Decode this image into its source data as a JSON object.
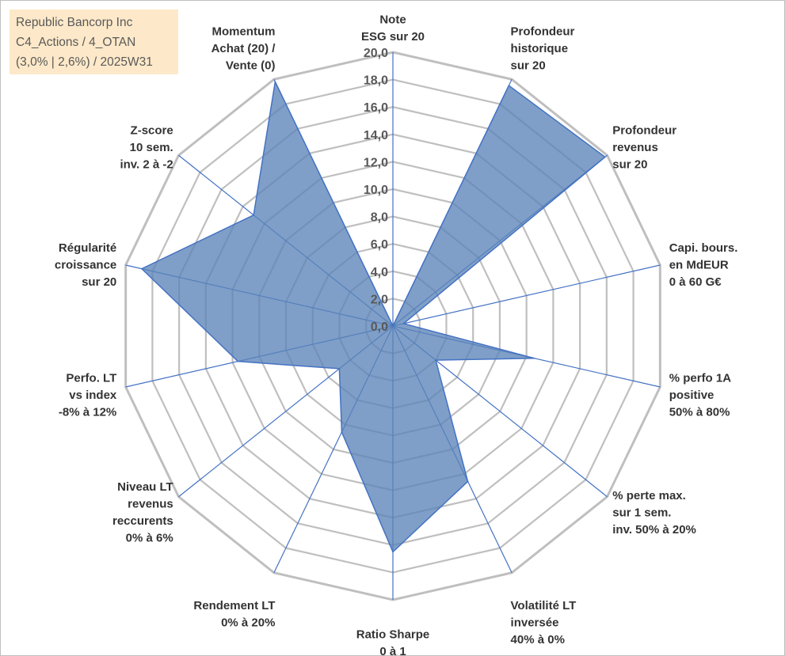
{
  "title_lines": [
    "Republic Bancorp Inc",
    "C4_Actions / 4_OTAN",
    "(3,0% | 2,6%) / 2025W31"
  ],
  "colors": {
    "grid": "#bfbfbf",
    "spoke": "#4472c4",
    "fill": "#5b84b8",
    "stroke": "#4472c4",
    "title_bg": "#fde9c9"
  },
  "chart_data": {
    "type": "radar",
    "rmin": 0,
    "rmax": 20,
    "tick_step": 2,
    "ticks": [
      "0,0",
      "2,0",
      "4,0",
      "6,0",
      "8,0",
      "10,0",
      "12,0",
      "14,0",
      "16,0",
      "18,0",
      "20,0"
    ],
    "axes": [
      {
        "label": [
          "Note",
          "ESG sur 20"
        ],
        "value": 0
      },
      {
        "label": [
          "Profondeur",
          "historique",
          "sur 20"
        ],
        "value": 19.5
      },
      {
        "label": [
          "Profondeur",
          "revenus",
          "sur 20"
        ],
        "value": 19.8
      },
      {
        "label": [
          "Capi. bours.",
          "en MdEUR",
          "0 à 60 G€"
        ],
        "value": 0.8
      },
      {
        "label": [
          "% perfo 1A",
          "positive",
          "50% à 80%"
        ],
        "value": 10.6
      },
      {
        "label": [
          "% perte max.",
          "sur 1 sem.",
          "inv. 50% à 20%"
        ],
        "value": 4.0
      },
      {
        "label": [
          "Volatilité LT",
          "inversée",
          "40% à 0%"
        ],
        "value": 12.6
      },
      {
        "label": [
          "Ratio Sharpe",
          "0 à 1"
        ],
        "value": 16.5
      },
      {
        "label": [
          "Rendement LT",
          "0% à 20%"
        ],
        "value": 8.6
      },
      {
        "label": [
          "Niveau LT",
          "revenus",
          "reccurents",
          "0% à 6%"
        ],
        "value": 5.0
      },
      {
        "label": [
          "Perfo. LT",
          "vs index",
          "-8% à 12%"
        ],
        "value": 11.6
      },
      {
        "label": [
          "Régularité",
          "croissance",
          "sur 20"
        ],
        "value": 18.8
      },
      {
        "label": [
          "Z-score",
          "10 sem.",
          "inv. 2 à -2"
        ],
        "value": 13.0
      },
      {
        "label": [
          "Momentum",
          "Achat (20) /",
          "Vente (0)"
        ],
        "value": 19.8
      }
    ]
  }
}
